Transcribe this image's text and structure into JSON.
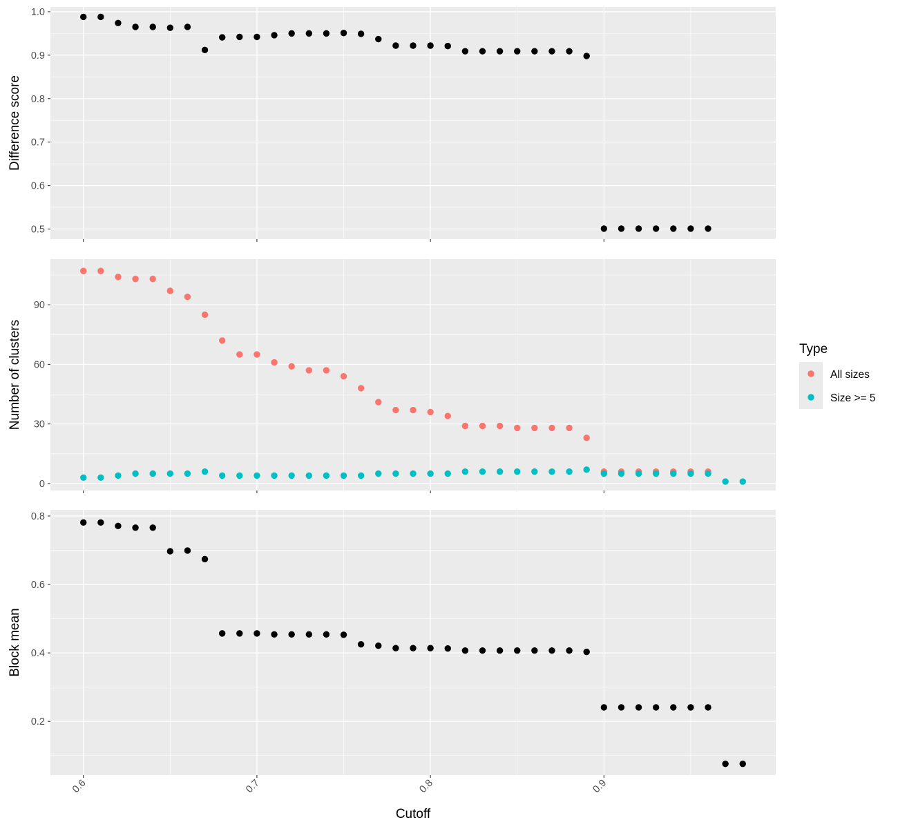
{
  "chart_data": {
    "type": "scatter",
    "xlabel": "Cutoff",
    "xlim": [
      0.581,
      0.999
    ],
    "x_ticks": [
      "0.6",
      "0.7",
      "0.8",
      "0.9"
    ],
    "x_tick_values": [
      0.6,
      0.7,
      0.8,
      0.9
    ],
    "grid": true,
    "legend": {
      "title": "Type",
      "position": "right",
      "entries": [
        {
          "label": "All sizes",
          "color": "#F8766D"
        },
        {
          "label": "Size >= 5",
          "color": "#00BFC4"
        }
      ]
    },
    "panels": [
      {
        "ylabel": "Difference score",
        "ylim": [
          0.477,
          1.011
        ],
        "y_ticks": [
          "0.5",
          "0.6",
          "0.7",
          "0.8",
          "0.9",
          "1.0"
        ],
        "y_tick_values": [
          0.5,
          0.6,
          0.7,
          0.8,
          0.9,
          1.0
        ],
        "series": [
          {
            "color": "#000000",
            "x": [
              0.6,
              0.61,
              0.62,
              0.63,
              0.64,
              0.65,
              0.66,
              0.67,
              0.68,
              0.69,
              0.7,
              0.71,
              0.72,
              0.73,
              0.74,
              0.75,
              0.76,
              0.77,
              0.78,
              0.79,
              0.8,
              0.81,
              0.82,
              0.83,
              0.84,
              0.85,
              0.86,
              0.87,
              0.88,
              0.89,
              0.9,
              0.91,
              0.92,
              0.93,
              0.94,
              0.95,
              0.96
            ],
            "y": [
              0.988,
              0.988,
              0.974,
              0.965,
              0.965,
              0.963,
              0.965,
              0.912,
              0.941,
              0.942,
              0.942,
              0.946,
              0.95,
              0.95,
              0.95,
              0.951,
              0.949,
              0.937,
              0.922,
              0.922,
              0.922,
              0.921,
              0.909,
              0.909,
              0.909,
              0.909,
              0.909,
              0.909,
              0.909,
              0.898,
              0.501,
              0.501,
              0.501,
              0.501,
              0.501,
              0.501,
              0.501
            ]
          }
        ]
      },
      {
        "ylabel": "Number of clusters",
        "ylim": [
          -3.5,
          113
        ],
        "y_ticks": [
          "0",
          "30",
          "60",
          "90"
        ],
        "y_tick_values": [
          0,
          30,
          60,
          90
        ],
        "series": [
          {
            "name": "All sizes",
            "color": "#F8766D",
            "x": [
              0.6,
              0.61,
              0.62,
              0.63,
              0.64,
              0.65,
              0.66,
              0.67,
              0.68,
              0.69,
              0.7,
              0.71,
              0.72,
              0.73,
              0.74,
              0.75,
              0.76,
              0.77,
              0.78,
              0.79,
              0.8,
              0.81,
              0.82,
              0.83,
              0.84,
              0.85,
              0.86,
              0.87,
              0.88,
              0.89,
              0.9,
              0.91,
              0.92,
              0.93,
              0.94,
              0.95,
              0.96
            ],
            "y": [
              107,
              107,
              104,
              103,
              103,
              97,
              94,
              85,
              72,
              65,
              65,
              61,
              59,
              57,
              57,
              54,
              48,
              41,
              37,
              37,
              36,
              34,
              29,
              29,
              29,
              28,
              28,
              28,
              28,
              23,
              6,
              6,
              6,
              6,
              6,
              6,
              6
            ]
          },
          {
            "name": "Size >= 5",
            "color": "#00BFC4",
            "x": [
              0.6,
              0.61,
              0.62,
              0.63,
              0.64,
              0.65,
              0.66,
              0.67,
              0.68,
              0.69,
              0.7,
              0.71,
              0.72,
              0.73,
              0.74,
              0.75,
              0.76,
              0.77,
              0.78,
              0.79,
              0.8,
              0.81,
              0.82,
              0.83,
              0.84,
              0.85,
              0.86,
              0.87,
              0.88,
              0.89,
              0.9,
              0.91,
              0.92,
              0.93,
              0.94,
              0.95,
              0.96,
              0.97,
              0.98
            ],
            "y": [
              3,
              3,
              4,
              5,
              5,
              5,
              5,
              6,
              4,
              4,
              4,
              4,
              4,
              4,
              4,
              4,
              4,
              5,
              5,
              5,
              5,
              5,
              6,
              6,
              6,
              6,
              6,
              6,
              6,
              7,
              5,
              5,
              5,
              5,
              5,
              5,
              5,
              1,
              1
            ]
          }
        ]
      },
      {
        "ylabel": "Block mean",
        "ylim": [
          0.043,
          0.818
        ],
        "y_ticks": [
          "0.2",
          "0.4",
          "0.6",
          "0.8"
        ],
        "y_tick_values": [
          0.2,
          0.4,
          0.6,
          0.8
        ],
        "series": [
          {
            "color": "#000000",
            "x": [
              0.6,
              0.61,
              0.62,
              0.63,
              0.64,
              0.65,
              0.66,
              0.67,
              0.68,
              0.69,
              0.7,
              0.71,
              0.72,
              0.73,
              0.74,
              0.75,
              0.76,
              0.77,
              0.78,
              0.79,
              0.8,
              0.81,
              0.82,
              0.83,
              0.84,
              0.85,
              0.86,
              0.87,
              0.88,
              0.89,
              0.9,
              0.91,
              0.92,
              0.93,
              0.94,
              0.95,
              0.96,
              0.97,
              0.98
            ],
            "y": [
              0.781,
              0.781,
              0.771,
              0.766,
              0.766,
              0.697,
              0.699,
              0.674,
              0.457,
              0.457,
              0.457,
              0.454,
              0.454,
              0.454,
              0.454,
              0.453,
              0.425,
              0.421,
              0.414,
              0.414,
              0.414,
              0.413,
              0.407,
              0.407,
              0.407,
              0.407,
              0.407,
              0.407,
              0.407,
              0.403,
              0.241,
              0.241,
              0.241,
              0.241,
              0.241,
              0.241,
              0.241,
              0.076,
              0.076
            ]
          }
        ]
      }
    ]
  }
}
